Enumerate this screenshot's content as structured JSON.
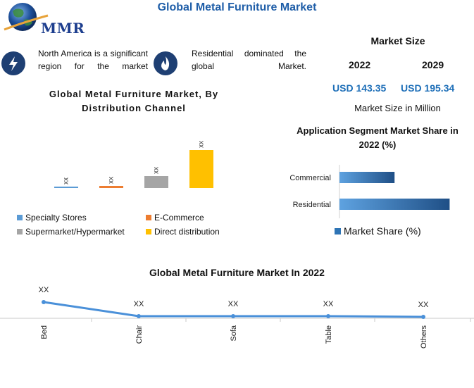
{
  "header": {
    "title": "Global Metal Furniture Market"
  },
  "logo": {
    "text": "MMR"
  },
  "facts": [
    {
      "icon": "lightning-icon",
      "text": "North America is a significant region for the market"
    },
    {
      "icon": "fire-icon",
      "text": "Residential dominated the global Market."
    }
  ],
  "market_size": {
    "title": "Market Size",
    "years": [
      "2022",
      "2029"
    ],
    "values": [
      "USD 143.35",
      "USD 195.34"
    ],
    "unit": "Market Size in Million"
  },
  "colors": {
    "specialty": "#5b9bd5",
    "ecommerce": "#ed7d31",
    "supermarket": "#a5a5a5",
    "direct": "#ffc000",
    "app_bar": "#2e74b5",
    "line": "#4a90d9",
    "title_blue": "#1f5ea8"
  },
  "chart_data": [
    {
      "type": "bar",
      "title": "Global Metal Furniture Market, By Distribution Channel",
      "categories": [
        "Specialty Stores",
        "E-Commerce",
        "Supermarket/Hypermarket",
        "Direct distribution"
      ],
      "series": [
        {
          "values": [
            1,
            3,
            17,
            54
          ]
        }
      ],
      "data_labels": [
        "xx",
        "xx",
        "xx",
        "xx"
      ],
      "legend": "bottom"
    },
    {
      "type": "bar",
      "orientation": "horizontal",
      "title": "Application Segment Market Share in 2022 (%)",
      "categories": [
        "Commercial",
        "Residential"
      ],
      "series": [
        {
          "name": "Market Share (%)",
          "values": [
            46,
            92
          ]
        }
      ],
      "legend": "bottom"
    },
    {
      "type": "line",
      "title": "Global Metal Furniture Market In 2022",
      "categories": [
        "Bed",
        "Chair",
        "Sofa",
        "Table",
        "Others"
      ],
      "series": [
        {
          "values": [
            20,
            1,
            1,
            1,
            0
          ]
        }
      ],
      "data_labels": [
        "XX",
        "XX",
        "XX",
        "XX",
        "XX"
      ]
    }
  ]
}
